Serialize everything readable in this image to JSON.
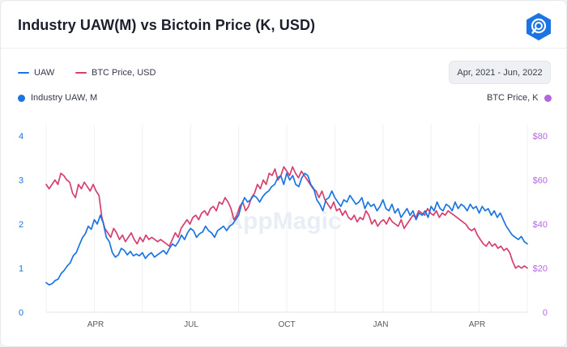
{
  "header": {
    "title": "Industry UAW(M) vs Bictoin Price (K, USD)",
    "logo_icon": "appmagic-logo-icon"
  },
  "legend": [
    {
      "label": "UAW",
      "color": "#1a74e2"
    },
    {
      "label": "BTC Price, USD",
      "color": "#d63f6e"
    }
  ],
  "date_range": {
    "label": "Apr, 2021 - Jun, 2022"
  },
  "axis_titles": {
    "left": {
      "label": "Industry UAW, M",
      "color": "#1a74e2"
    },
    "right": {
      "label": "BTC Price, K",
      "color": "#b466e0"
    }
  },
  "watermark": "AppMagic",
  "chart_data": {
    "type": "line",
    "x_ticks": [
      "APR",
      "JUL",
      "OCT",
      "JAN",
      "APR"
    ],
    "y_left": {
      "ticks": [
        "0",
        "1",
        "2",
        "3",
        "4"
      ],
      "range": [
        0,
        4
      ],
      "color": "#1a74e2"
    },
    "y_right": {
      "ticks": [
        "0",
        "$20",
        "$40",
        "$60",
        "$80"
      ],
      "range": [
        0,
        80
      ],
      "color": "#b466e0"
    },
    "grid": "vertical",
    "series": [
      {
        "name": "UAW",
        "axis": "left",
        "color": "#1a74e2",
        "values": [
          0.67,
          0.62,
          0.65,
          0.72,
          0.75,
          0.88,
          0.95,
          1.05,
          1.12,
          1.28,
          1.35,
          1.52,
          1.68,
          1.78,
          1.95,
          1.88,
          2.1,
          2.0,
          2.2,
          2.02,
          1.7,
          1.6,
          1.35,
          1.25,
          1.3,
          1.45,
          1.4,
          1.3,
          1.38,
          1.28,
          1.32,
          1.28,
          1.35,
          1.22,
          1.3,
          1.35,
          1.25,
          1.3,
          1.35,
          1.4,
          1.32,
          1.45,
          1.55,
          1.5,
          1.6,
          1.75,
          1.65,
          1.8,
          1.9,
          1.85,
          1.7,
          1.78,
          1.82,
          1.95,
          1.85,
          1.8,
          1.7,
          1.85,
          1.9,
          1.95,
          1.85,
          1.95,
          2.0,
          2.1,
          2.2,
          2.45,
          2.6,
          2.5,
          2.55,
          2.65,
          2.6,
          2.5,
          2.62,
          2.7,
          2.75,
          2.85,
          2.9,
          3.05,
          3.1,
          2.9,
          3.15,
          3.0,
          3.1,
          2.9,
          2.85,
          3.05,
          3.15,
          3.1,
          2.9,
          2.8,
          2.55,
          2.45,
          2.3,
          2.55,
          2.6,
          2.75,
          2.6,
          2.5,
          2.4,
          2.55,
          2.5,
          2.65,
          2.55,
          2.45,
          2.5,
          2.6,
          2.35,
          2.5,
          2.4,
          2.45,
          2.3,
          2.4,
          2.55,
          2.35,
          2.3,
          2.45,
          2.25,
          2.35,
          2.15,
          2.25,
          2.35,
          2.2,
          2.3,
          2.1,
          2.25,
          2.2,
          2.3,
          2.15,
          2.4,
          2.3,
          2.5,
          2.35,
          2.3,
          2.45,
          2.4,
          2.3,
          2.5,
          2.35,
          2.45,
          2.4,
          2.3,
          2.45,
          2.35,
          2.4,
          2.25,
          2.4,
          2.3,
          2.35,
          2.2,
          2.3,
          2.15,
          2.25,
          2.1,
          1.95,
          1.85,
          1.75,
          1.7,
          1.65,
          1.72,
          1.6,
          1.55
        ]
      },
      {
        "name": "BTC Price, USD",
        "axis": "right",
        "color": "#d63f6e",
        "values": [
          58,
          56,
          58,
          60,
          58,
          63,
          62,
          60,
          59,
          54,
          52,
          58,
          56,
          59,
          57,
          55,
          58,
          55,
          53,
          43,
          38,
          36,
          34,
          38,
          36,
          33,
          35,
          32,
          34,
          36,
          33,
          31,
          34,
          32,
          35,
          33,
          34,
          33,
          32,
          33,
          32,
          31,
          30,
          33,
          36,
          34,
          38,
          40,
          42,
          40,
          43,
          44,
          42,
          45,
          46,
          44,
          47,
          48,
          46,
          50,
          49,
          52,
          50,
          47,
          42,
          44,
          48,
          50,
          46,
          48,
          52,
          54,
          58,
          56,
          60,
          58,
          63,
          62,
          65,
          60,
          62,
          66,
          64,
          62,
          66,
          63,
          61,
          64,
          62,
          60,
          58,
          56,
          55,
          52,
          55,
          51,
          49,
          47,
          50,
          46,
          47,
          44,
          46,
          43,
          42,
          44,
          41,
          43,
          42,
          46,
          44,
          40,
          42,
          39,
          41,
          42,
          40,
          43,
          41,
          40,
          39,
          42,
          38,
          40,
          42,
          44,
          43,
          46,
          45,
          44,
          47,
          45,
          44,
          46,
          43,
          45,
          44,
          46,
          45,
          44,
          43,
          42,
          41,
          40,
          38,
          37,
          38,
          35,
          33,
          31,
          30,
          32,
          30,
          31,
          29,
          30,
          28,
          29,
          27,
          23,
          20,
          21,
          20,
          21,
          20
        ]
      }
    ]
  }
}
